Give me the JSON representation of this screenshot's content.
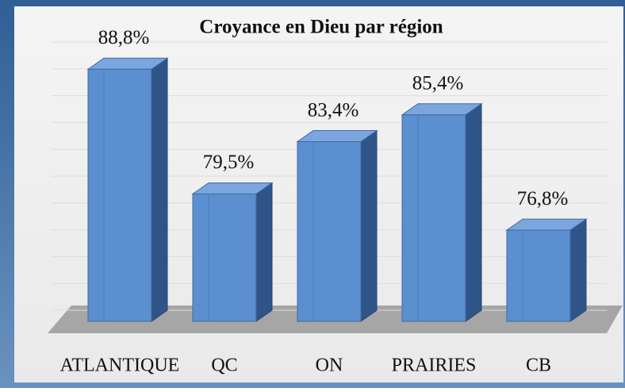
{
  "chart_data": {
    "type": "bar",
    "title": "Croyance en Dieu par région",
    "categories": [
      "ATLANTIQUE",
      "QC",
      "ON",
      "PRAIRIES",
      "CB"
    ],
    "values": [
      88.8,
      79.5,
      83.4,
      85.4,
      76.8
    ],
    "value_labels": [
      "88,8%",
      "79,5%",
      "83,4%",
      "85,4%",
      "76,8%"
    ],
    "color": "#5b8fd0",
    "ylim": [
      70,
      90
    ],
    "yticks": [
      70,
      72,
      74,
      76,
      78,
      80,
      82,
      84,
      86,
      88,
      90
    ],
    "grid": true
  }
}
